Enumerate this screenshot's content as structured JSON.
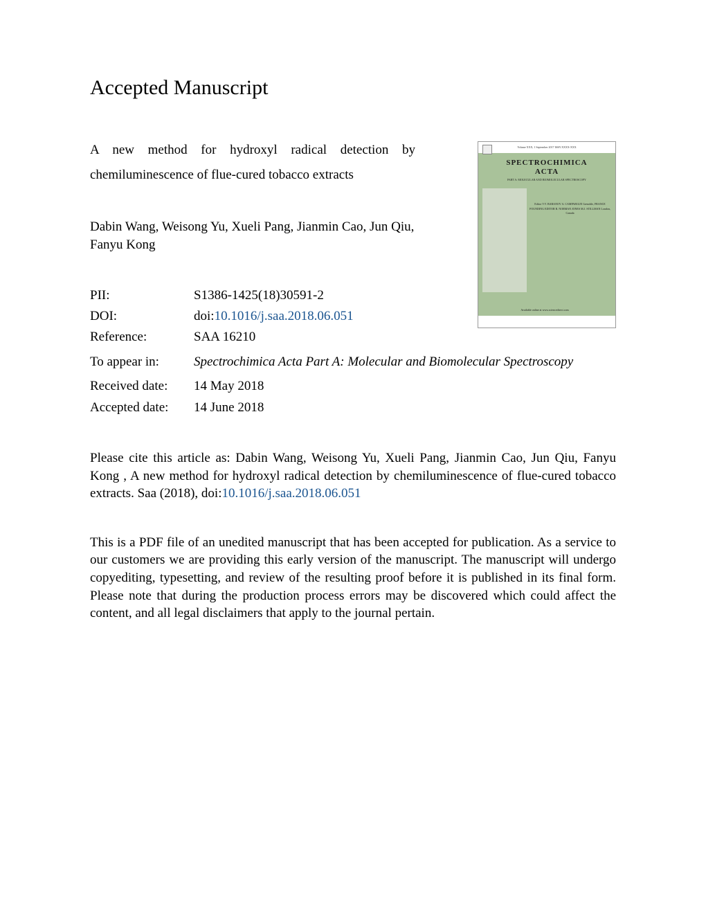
{
  "heading": "Accepted Manuscript",
  "article_title_line1": "A new method for hydroxyl radical detection by",
  "article_title_line2": "chemiluminescence of flue-cured tobacco extracts",
  "authors": "Dabin Wang, Weisong Yu, Xueli Pang, Jianmin Cao, Jun Qiu, Fanyu Kong",
  "meta": {
    "pii_label": "PII:",
    "pii_value": "S1386-1425(18)30591-2",
    "doi_label": "DOI:",
    "doi_prefix": "doi:",
    "doi_link": "10.1016/j.saa.2018.06.051",
    "reference_label": "Reference:",
    "reference_value": "SAA 16210",
    "appear_label": "To appear in:",
    "appear_value": "Spectrochimica Acta Part A: Molecular and Biomolecular Spectroscopy",
    "received_label": "Received date:",
    "received_value": "14 May 2018",
    "accepted_label": "Accepted date:",
    "accepted_value": "14 June 2018"
  },
  "citation_text_pre": "Please cite this article as: Dabin Wang, Weisong Yu, Xueli Pang, Jianmin Cao, Jun Qiu, Fanyu Kong , A new method for hydroxyl radical detection by chemiluminescence of flue-cured tobacco extracts. Saa (2018), doi:",
  "citation_doi": "10.1016/j.saa.2018.06.051",
  "disclaimer": "This is a PDF file of an unedited manuscript that has been accepted for publication. As a service to our customers we are providing this early version of the manuscript. The manuscript will undergo copyediting, typesetting, and review of the resulting proof before it is published in its final form. Please note that during the production process errors may be discovered which could affect the content, and all legal disclaimers that apply to the journal pertain.",
  "cover": {
    "top_text": "Volume XXX, 1 September 2017    ISSN XXXX-XXX",
    "journal_name_line1": "SPECTROCHIMICA",
    "journal_name_line2": "ACTA",
    "subtitle": "PART A: MOLECULAR AND BIOMOLECULAR SPECTROSCOPY",
    "editor_block": "Editor\nV.V. BARANOV\n\nA. CAMPARGUE\nGrenoble, FRANCE\n\nFOUNDING EDITOR\nR. NORMAN JONES\n\nM.J. STILLMAN\nLondon, Canada",
    "footer": "Available online at www.sciencedirect.com"
  },
  "colors": {
    "background": "#ffffff",
    "text": "#000000",
    "link": "#1a5490",
    "cover_green": "#a9c29a",
    "cover_light": "#cfd9c7"
  },
  "typography": {
    "heading_fontsize": 30,
    "body_fontsize": 19,
    "font_family": "Times New Roman"
  }
}
